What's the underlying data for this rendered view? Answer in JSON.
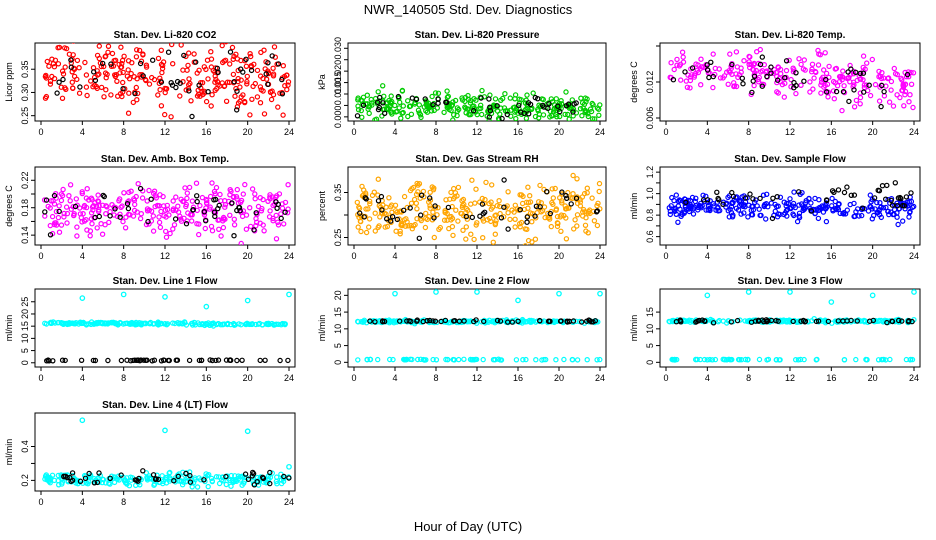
{
  "figure": {
    "title": "NWR_140505  Std. Dev. Diagnostics",
    "xlabel": "Hour of Day (UTC)"
  },
  "colors": {
    "red": "#ff0000",
    "green": "#00cc00",
    "magenta": "#ff00ff",
    "orange": "#ffa500",
    "blue": "#0000ff",
    "cyan": "#00ffff",
    "black": "#000000"
  },
  "chart_data": [
    {
      "type": "scatter",
      "title": "Stan. Dev. Li-820 CO2",
      "ylabel": "Licor ppm",
      "xticks": [
        0,
        4,
        8,
        12,
        16,
        20,
        24
      ],
      "yticks": [
        0.25,
        0.3,
        0.35
      ],
      "ytick_labels": [
        "0.25",
        "0.30",
        "0.35"
      ],
      "xlim": [
        0,
        24
      ],
      "ylim": [
        0.245,
        0.4
      ],
      "series": [
        {
          "color": "red",
          "center": [
            0.345,
            0.33
          ],
          "spread": 0.035,
          "count": 300
        },
        {
          "color": "black",
          "center": [
            0.335,
            0.335
          ],
          "spread": 0.03,
          "count": 45
        }
      ]
    },
    {
      "type": "scatter",
      "title": "Stan. Dev. Li-820 Pressure",
      "ylabel": "kPa",
      "xticks": [
        0,
        4,
        8,
        12,
        16,
        20,
        24
      ],
      "yticks": [
        0.0,
        0.005,
        0.01,
        0.015,
        0.02,
        0.025,
        0.03
      ],
      "ytick_labels": [
        "0.000",
        "",
        "0.010",
        "0.015",
        "0.020",
        "",
        "0.030"
      ],
      "xlim": [
        0,
        24
      ],
      "ylim": [
        -0.0005,
        0.031
      ],
      "series": [
        {
          "color": "green",
          "center": [
            0.0045,
            0.0035
          ],
          "spread": 0.003,
          "count": 300
        },
        {
          "color": "black",
          "center": [
            0.005,
            0.004
          ],
          "spread": 0.0025,
          "count": 45
        }
      ]
    },
    {
      "type": "scatter",
      "title": "Stan. Dev. Li-820 Temp.",
      "ylabel": "degrees C",
      "xticks": [
        0,
        4,
        8,
        12,
        16,
        20,
        24
      ],
      "yticks": [
        0.006,
        0.012,
        0.018
      ],
      "ytick_labels": [
        "0.006",
        "0.012",
        ""
      ],
      "xlim": [
        0,
        24
      ],
      "ylim": [
        0.006,
        0.018
      ],
      "series": [
        {
          "color": "magenta",
          "center": [
            0.0145,
            0.0115
          ],
          "spread": 0.0018,
          "count": 260
        },
        {
          "color": "black",
          "center": [
            0.014,
            0.0115
          ],
          "spread": 0.0015,
          "count": 45
        }
      ]
    },
    {
      "type": "scatter",
      "title": "Stan. Dev. Amb. Box Temp.",
      "ylabel": "degrees C",
      "xticks": [
        0,
        4,
        8,
        12,
        16,
        20,
        24
      ],
      "yticks": [
        0.14,
        0.16,
        0.18,
        0.2,
        0.22
      ],
      "ytick_labels": [
        "0.14",
        "",
        "0.18",
        "",
        "0.22"
      ],
      "xlim": [
        0,
        24
      ],
      "ylim": [
        0.13,
        0.235
      ],
      "series": [
        {
          "color": "magenta",
          "center": [
            0.175,
            0.175
          ],
          "spread": 0.018,
          "count": 300
        },
        {
          "color": "black",
          "center": [
            0.175,
            0.175
          ],
          "spread": 0.015,
          "count": 45
        }
      ]
    },
    {
      "type": "scatter",
      "title": "Stan. Dev. Gas Stream RH",
      "ylabel": "percent",
      "xticks": [
        0,
        4,
        8,
        12,
        16,
        20,
        24
      ],
      "yticks": [
        0.25,
        0.3,
        0.35
      ],
      "ytick_labels": [
        "0.25",
        "",
        "0.35"
      ],
      "xlim": [
        0,
        24
      ],
      "ylim": [
        0.24,
        0.4
      ],
      "series": [
        {
          "color": "orange",
          "center": [
            0.31,
            0.31
          ],
          "spread": 0.03,
          "count": 320
        },
        {
          "color": "black",
          "center": [
            0.31,
            0.31
          ],
          "spread": 0.025,
          "count": 45
        }
      ]
    },
    {
      "type": "scatter",
      "title": "Stan. Dev. Sample Flow",
      "ylabel": "ml/min",
      "xticks": [
        0,
        4,
        8,
        12,
        16,
        20,
        24
      ],
      "yticks": [
        0.6,
        0.7,
        0.8,
        0.9,
        1.0,
        1.1,
        1.2
      ],
      "ytick_labels": [
        "0.6",
        "",
        "0.8",
        "",
        "1.0",
        "",
        "1.2"
      ],
      "xlim": [
        0,
        24
      ],
      "ylim": [
        0.55,
        1.22
      ],
      "series": [
        {
          "color": "blue",
          "center": [
            0.88,
            0.85
          ],
          "spread": 0.06,
          "count": 300
        },
        {
          "color": "black",
          "center": [
            0.95,
            0.95
          ],
          "spread": 0.06,
          "count": 45
        }
      ]
    },
    {
      "type": "scatter",
      "title": "Stan. Dev. Line 1 Flow",
      "ylabel": "ml/min",
      "xticks": [
        0,
        4,
        8,
        12,
        16,
        20,
        24
      ],
      "yticks": [
        0,
        5,
        10,
        15,
        20,
        25
      ],
      "ytick_labels": [
        "0",
        "5",
        "10",
        "15",
        "20",
        "25"
      ],
      "xlim": [
        0,
        24
      ],
      "ylim": [
        -0.5,
        29
      ],
      "series": [
        {
          "color": "cyan",
          "center": [
            16.3,
            15.7
          ],
          "spread": 0.25,
          "count": 220
        },
        {
          "color": "black",
          "center": [
            1.0,
            1.0
          ],
          "spread": 0.1,
          "count": 50
        }
      ],
      "outliers": [
        {
          "x": 4,
          "y": 26.5,
          "color": "cyan"
        },
        {
          "x": 8,
          "y": 28,
          "color": "cyan"
        },
        {
          "x": 12,
          "y": 27,
          "color": "cyan"
        },
        {
          "x": 16,
          "y": 23,
          "color": "cyan"
        },
        {
          "x": 20,
          "y": 25.5,
          "color": "cyan"
        },
        {
          "x": 24,
          "y": 28,
          "color": "cyan"
        }
      ]
    },
    {
      "type": "scatter",
      "title": "Stan. Dev. Line 2 Flow",
      "ylabel": "ml/min",
      "xticks": [
        0,
        4,
        8,
        12,
        16,
        20,
        24
      ],
      "yticks": [
        0,
        5,
        10,
        15,
        20
      ],
      "ytick_labels": [
        "0",
        "5",
        "10",
        "15",
        "20"
      ],
      "xlim": [
        0,
        24
      ],
      "ylim": [
        -0.5,
        21
      ],
      "series": [
        {
          "color": "cyan",
          "center": [
            12.2,
            12.2
          ],
          "spread": 0.2,
          "count": 200
        },
        {
          "color": "black",
          "center": [
            12.3,
            12.3
          ],
          "spread": 0.2,
          "count": 50
        },
        {
          "color": "cyan",
          "center": [
            0.8,
            0.8
          ],
          "spread": 0.05,
          "count": 60
        }
      ],
      "outliers": [
        {
          "x": 4,
          "y": 20.5,
          "color": "cyan"
        },
        {
          "x": 8,
          "y": 21,
          "color": "cyan"
        },
        {
          "x": 12,
          "y": 21,
          "color": "cyan"
        },
        {
          "x": 16,
          "y": 18.5,
          "color": "cyan"
        },
        {
          "x": 20,
          "y": 20.5,
          "color": "cyan"
        },
        {
          "x": 24,
          "y": 20.5,
          "color": "cyan"
        }
      ]
    },
    {
      "type": "scatter",
      "title": "Stan. Dev. Line 3 Flow",
      "ylabel": "ml/min",
      "xticks": [
        0,
        4,
        8,
        12,
        16,
        20,
        24
      ],
      "yticks": [
        0,
        5,
        10,
        15
      ],
      "ytick_labels": [
        "0",
        "5",
        "10",
        "15"
      ],
      "xlim": [
        0,
        24
      ],
      "ylim": [
        -0.5,
        21
      ],
      "series": [
        {
          "color": "cyan",
          "center": [
            12.3,
            12.3
          ],
          "spread": 0.2,
          "count": 200
        },
        {
          "color": "black",
          "center": [
            12.3,
            12.3
          ],
          "spread": 0.2,
          "count": 50
        },
        {
          "color": "cyan",
          "center": [
            0.8,
            0.8
          ],
          "spread": 0.05,
          "count": 60
        }
      ],
      "outliers": [
        {
          "x": 4,
          "y": 20,
          "color": "cyan"
        },
        {
          "x": 8,
          "y": 21,
          "color": "cyan"
        },
        {
          "x": 12,
          "y": 21,
          "color": "cyan"
        },
        {
          "x": 16,
          "y": 18,
          "color": "cyan"
        },
        {
          "x": 20,
          "y": 20,
          "color": "cyan"
        },
        {
          "x": 24,
          "y": 21,
          "color": "cyan"
        }
      ]
    },
    {
      "type": "scatter",
      "title": "Stan. Dev. Line 4 (LT) Flow",
      "ylabel": "ml/min",
      "xticks": [
        0,
        4,
        8,
        12,
        16,
        20,
        24
      ],
      "yticks": [
        0.2,
        0.3,
        0.4
      ],
      "ytick_labels": [
        "0.2",
        "",
        "0.4"
      ],
      "xlim": [
        0,
        24
      ],
      "ylim": [
        0.155,
        0.58
      ],
      "series": [
        {
          "color": "cyan",
          "center": [
            0.205,
            0.205
          ],
          "spread": 0.018,
          "count": 230
        },
        {
          "color": "black",
          "center": [
            0.21,
            0.21
          ],
          "spread": 0.02,
          "count": 45
        }
      ],
      "outliers": [
        {
          "x": 4,
          "y": 0.555,
          "color": "cyan"
        },
        {
          "x": 12,
          "y": 0.495,
          "color": "cyan"
        },
        {
          "x": 20,
          "y": 0.49,
          "color": "cyan"
        },
        {
          "x": 24,
          "y": 0.28,
          "color": "cyan"
        }
      ]
    }
  ]
}
